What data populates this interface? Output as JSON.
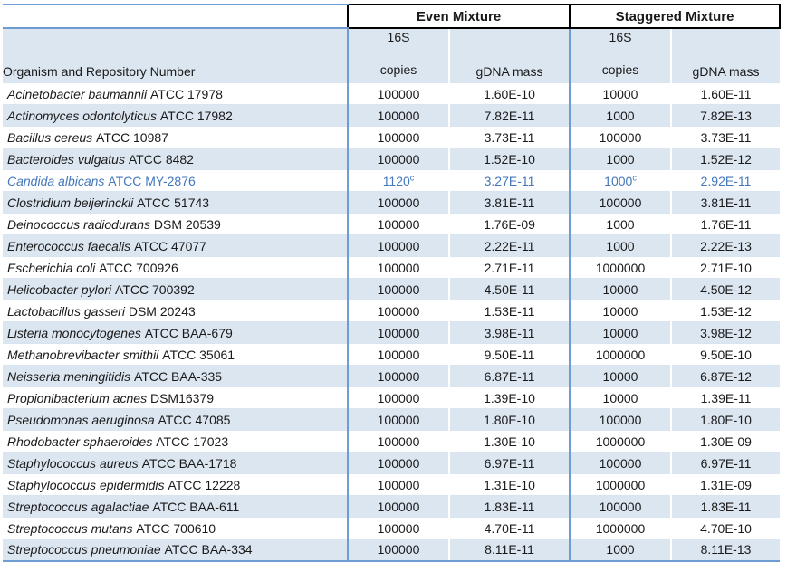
{
  "colors": {
    "stripe": "#DCE6F1",
    "separator": "#6D9DD1",
    "grid": "#D8E4F2",
    "highlight_text": "#4477BB",
    "group_box": "#000000"
  },
  "table": {
    "col_groups": [
      {
        "label": "Even Mixture"
      },
      {
        "label": "Staggered Mixture"
      }
    ],
    "organism_header": "Organism and Repository Number",
    "subheaders": {
      "copies_line1": "16S",
      "copies_line2": "copies",
      "gdna": "gDNA mass"
    },
    "rows": [
      {
        "species": "Acinetobacter baumannii",
        "repository": "ATCC 17978",
        "even_copies": "100000",
        "even_copies_sup": "",
        "even_gdna": "1.60E-10",
        "stag_copies": "10000",
        "stag_copies_sup": "",
        "stag_gdna": "1.60E-11",
        "highlighted": false
      },
      {
        "species": "Actinomyces odontolyticus",
        "repository": "ATCC 17982",
        "even_copies": "100000",
        "even_copies_sup": "",
        "even_gdna": "7.82E-11",
        "stag_copies": "1000",
        "stag_copies_sup": "",
        "stag_gdna": "7.82E-13",
        "highlighted": false
      },
      {
        "species": "Bacillus cereus",
        "repository": "ATCC 10987",
        "even_copies": "100000",
        "even_copies_sup": "",
        "even_gdna": "3.73E-11",
        "stag_copies": "100000",
        "stag_copies_sup": "",
        "stag_gdna": "3.73E-11",
        "highlighted": false
      },
      {
        "species": "Bacteroides vulgatus",
        "repository": "ATCC 8482",
        "even_copies": "100000",
        "even_copies_sup": "",
        "even_gdna": "1.52E-10",
        "stag_copies": "1000",
        "stag_copies_sup": "",
        "stag_gdna": "1.52E-12",
        "highlighted": false
      },
      {
        "species": "Candida albicans",
        "repository": "ATCC MY-2876",
        "even_copies": "1120",
        "even_copies_sup": "c",
        "even_gdna": "3.27E-11",
        "stag_copies": "1000",
        "stag_copies_sup": "c",
        "stag_gdna": "2.92E-11",
        "highlighted": true
      },
      {
        "species": "Clostridium beijerinckii",
        "repository": "ATCC 51743",
        "even_copies": "100000",
        "even_copies_sup": "",
        "even_gdna": "3.81E-11",
        "stag_copies": "100000",
        "stag_copies_sup": "",
        "stag_gdna": "3.81E-11",
        "highlighted": false
      },
      {
        "species": "Deinococcus radiodurans",
        "repository": "DSM 20539",
        "even_copies": "100000",
        "even_copies_sup": "",
        "even_gdna": "1.76E-09",
        "stag_copies": "1000",
        "stag_copies_sup": "",
        "stag_gdna": "1.76E-11",
        "highlighted": false
      },
      {
        "species": "Enterococcus faecalis",
        "repository": "ATCC 47077",
        "even_copies": "100000",
        "even_copies_sup": "",
        "even_gdna": "2.22E-11",
        "stag_copies": "1000",
        "stag_copies_sup": "",
        "stag_gdna": "2.22E-13",
        "highlighted": false
      },
      {
        "species": "Escherichia coli",
        "repository": "ATCC 700926",
        "even_copies": "100000",
        "even_copies_sup": "",
        "even_gdna": "2.71E-11",
        "stag_copies": "1000000",
        "stag_copies_sup": "",
        "stag_gdna": "2.71E-10",
        "highlighted": false
      },
      {
        "species": "Helicobacter pylori",
        "repository": "ATCC 700392",
        "even_copies": "100000",
        "even_copies_sup": "",
        "even_gdna": "4.50E-11",
        "stag_copies": "10000",
        "stag_copies_sup": "",
        "stag_gdna": "4.50E-12",
        "highlighted": false
      },
      {
        "species": "Lactobacillus gasseri",
        "repository": "DSM 20243",
        "even_copies": "100000",
        "even_copies_sup": "",
        "even_gdna": "1.53E-11",
        "stag_copies": "10000",
        "stag_copies_sup": "",
        "stag_gdna": "1.53E-12",
        "highlighted": false
      },
      {
        "species": "Listeria monocytogenes",
        "repository": "ATCC BAA-679",
        "even_copies": "100000",
        "even_copies_sup": "",
        "even_gdna": "3.98E-11",
        "stag_copies": "10000",
        "stag_copies_sup": "",
        "stag_gdna": "3.98E-12",
        "highlighted": false
      },
      {
        "species": "Methanobrevibacter smithii",
        "repository": "ATCC 35061",
        "even_copies": "100000",
        "even_copies_sup": "",
        "even_gdna": "9.50E-11",
        "stag_copies": "1000000",
        "stag_copies_sup": "",
        "stag_gdna": "9.50E-10",
        "highlighted": false
      },
      {
        "species": "Neisseria meningitidis",
        "repository": "ATCC BAA-335",
        "even_copies": "100000",
        "even_copies_sup": "",
        "even_gdna": "6.87E-11",
        "stag_copies": "10000",
        "stag_copies_sup": "",
        "stag_gdna": "6.87E-12",
        "highlighted": false
      },
      {
        "species": "Propionibacterium acnes",
        "repository": "DSM16379",
        "even_copies": "100000",
        "even_copies_sup": "",
        "even_gdna": "1.39E-10",
        "stag_copies": "10000",
        "stag_copies_sup": "",
        "stag_gdna": "1.39E-11",
        "highlighted": false
      },
      {
        "species": "Pseudomonas aeruginosa",
        "repository": "ATCC 47085",
        "even_copies": "100000",
        "even_copies_sup": "",
        "even_gdna": "1.80E-10",
        "stag_copies": "100000",
        "stag_copies_sup": "",
        "stag_gdna": "1.80E-10",
        "highlighted": false
      },
      {
        "species": "Rhodobacter sphaeroides",
        "repository": "ATCC 17023",
        "even_copies": "100000",
        "even_copies_sup": "",
        "even_gdna": "1.30E-10",
        "stag_copies": "1000000",
        "stag_copies_sup": "",
        "stag_gdna": "1.30E-09",
        "highlighted": false
      },
      {
        "species": "Staphylococcus aureus",
        "repository": "ATCC BAA-1718",
        "even_copies": "100000",
        "even_copies_sup": "",
        "even_gdna": "6.97E-11",
        "stag_copies": "100000",
        "stag_copies_sup": "",
        "stag_gdna": "6.97E-11",
        "highlighted": false
      },
      {
        "species": "Staphylococcus epidermidis",
        "repository": "ATCC 12228",
        "even_copies": "100000",
        "even_copies_sup": "",
        "even_gdna": "1.31E-10",
        "stag_copies": "1000000",
        "stag_copies_sup": "",
        "stag_gdna": "1.31E-09",
        "highlighted": false
      },
      {
        "species": "Streptococcus agalactiae",
        "repository": "ATCC BAA-611",
        "even_copies": "100000",
        "even_copies_sup": "",
        "even_gdna": "1.83E-11",
        "stag_copies": "100000",
        "stag_copies_sup": "",
        "stag_gdna": "1.83E-11",
        "highlighted": false
      },
      {
        "species": "Streptococcus mutans",
        "repository": "ATCC 700610",
        "even_copies": "100000",
        "even_copies_sup": "",
        "even_gdna": "4.70E-11",
        "stag_copies": "1000000",
        "stag_copies_sup": "",
        "stag_gdna": "4.70E-10",
        "highlighted": false
      },
      {
        "species": "Streptococcus pneumoniae",
        "repository": "ATCC BAA-334",
        "even_copies": "100000",
        "even_copies_sup": "",
        "even_gdna": "8.11E-11",
        "stag_copies": "1000",
        "stag_copies_sup": "",
        "stag_gdna": "8.11E-13",
        "highlighted": false
      }
    ]
  }
}
